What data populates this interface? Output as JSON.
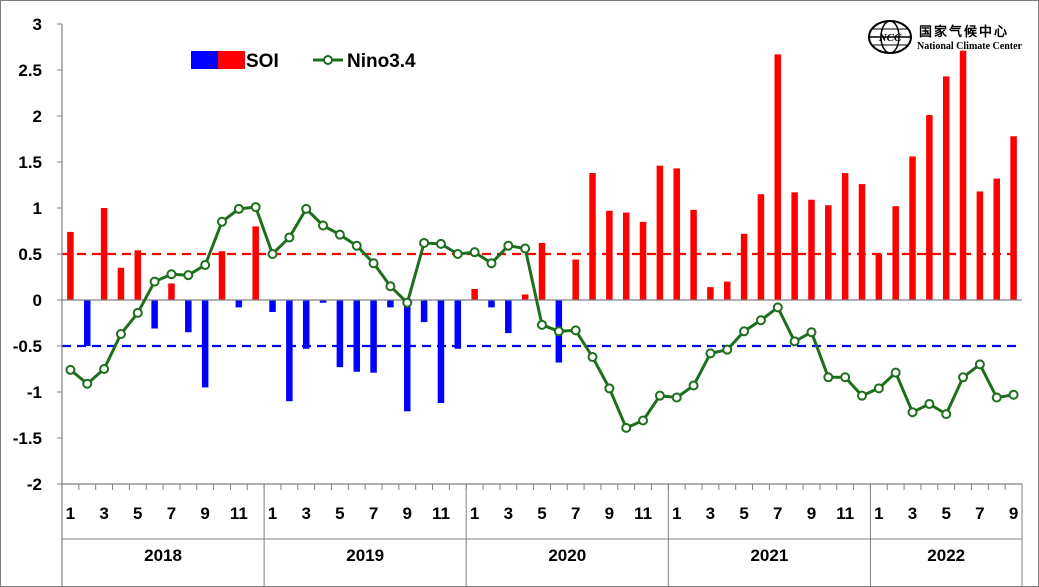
{
  "logo": {
    "name_cn": "国家气候中心",
    "name_en": "National Climate Center",
    "icon": "ncc-globe-emblem-icon"
  },
  "legend": {
    "soi_label": "SOI",
    "nino_label": "Nino3.4"
  },
  "colors": {
    "soi_positive": "#ff0000",
    "soi_negative": "#0000ff",
    "nino_line": "#1e6e1e",
    "upper_threshold_line": "#ff0000",
    "lower_threshold_line": "#0000ff",
    "axis": "#808080"
  },
  "chart_data": {
    "type": "bar",
    "ylim": [
      -2,
      3
    ],
    "yticks": [
      "3",
      "2.5",
      "2",
      "1.5",
      "1",
      "0.5",
      "0",
      "-0.5",
      "-1",
      "-1.5",
      "-2"
    ],
    "ytick_values": [
      3,
      2.5,
      2,
      1.5,
      1,
      0.5,
      0,
      -0.5,
      -1,
      -1.5,
      -2
    ],
    "grid": false,
    "legend_position": "top-left",
    "thresholds": [
      0.5,
      -0.5
    ],
    "years": [
      "2018",
      "2019",
      "2020",
      "2021",
      "2022"
    ],
    "year_month_counts": [
      12,
      12,
      12,
      12,
      9
    ],
    "x_tick_labels": [
      "1",
      "",
      "3",
      "",
      "5",
      "",
      "7",
      "",
      "9",
      "",
      "11",
      "",
      "1",
      "",
      "3",
      "",
      "5",
      "",
      "7",
      "",
      "9",
      "",
      "11",
      "",
      "1",
      "",
      "3",
      "",
      "5",
      "",
      "7",
      "",
      "9",
      "",
      "11",
      "",
      "1",
      "",
      "3",
      "",
      "5",
      "",
      "7",
      "",
      "9",
      "",
      "11",
      "",
      "1",
      "",
      "3",
      "",
      "5",
      "",
      "7",
      "",
      "9"
    ],
    "series": [
      {
        "name": "SOI",
        "kind": "bar",
        "values": [
          0.74,
          -0.5,
          1.0,
          0.35,
          0.54,
          -0.31,
          0.18,
          -0.35,
          -0.95,
          0.53,
          -0.08,
          0.8,
          -0.13,
          -1.1,
          -0.53,
          -0.03,
          -0.73,
          -0.78,
          -0.79,
          -0.08,
          -1.21,
          -0.24,
          -1.12,
          -0.53,
          0.12,
          -0.08,
          -0.36,
          0.06,
          0.62,
          -0.68,
          0.44,
          1.38,
          0.97,
          0.95,
          0.85,
          1.46,
          1.43,
          0.98,
          0.14,
          0.2,
          0.72,
          1.15,
          2.67,
          1.17,
          1.09,
          1.03,
          1.38,
          1.26,
          0.5,
          1.02,
          1.56,
          2.01,
          2.43,
          2.71,
          1.18,
          1.32,
          1.78
        ]
      },
      {
        "name": "Nino3.4",
        "kind": "line",
        "values": [
          -0.76,
          -0.91,
          -0.75,
          -0.37,
          -0.14,
          0.2,
          0.28,
          0.27,
          0.38,
          0.85,
          0.99,
          1.01,
          0.5,
          0.68,
          0.99,
          0.81,
          0.71,
          0.59,
          0.4,
          0.15,
          -0.03,
          0.62,
          0.61,
          0.5,
          0.52,
          0.4,
          0.59,
          0.56,
          -0.27,
          -0.34,
          -0.33,
          -0.62,
          -0.96,
          -1.39,
          -1.31,
          -1.04,
          -1.06,
          -0.93,
          -0.58,
          -0.54,
          -0.34,
          -0.22,
          -0.08,
          -0.45,
          -0.35,
          -0.84,
          -0.84,
          -1.04,
          -0.96,
          -0.79,
          -1.22,
          -1.13,
          -1.24,
          -0.84,
          -0.7,
          -1.06,
          -1.03
        ]
      }
    ]
  }
}
